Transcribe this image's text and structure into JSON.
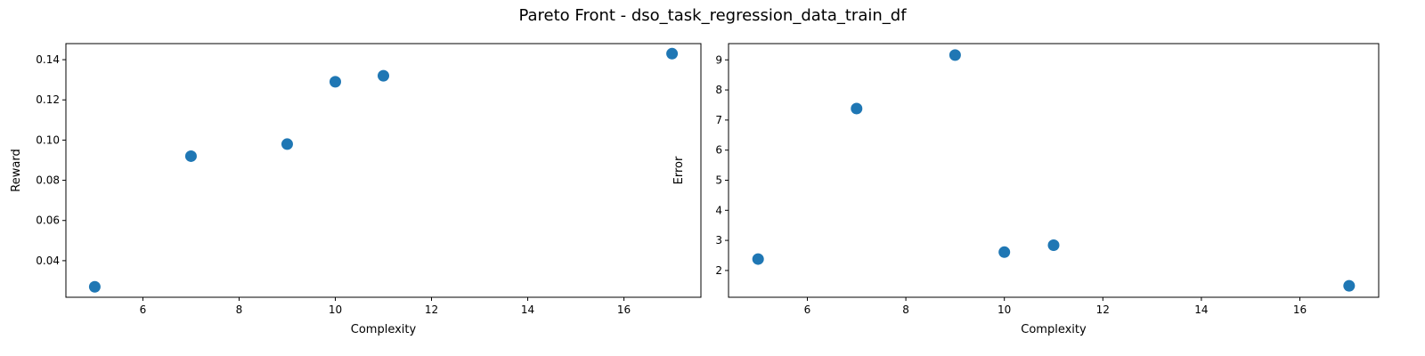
{
  "figure": {
    "title": "Pareto Front - dso_task_regression_data_train_df"
  },
  "chart_data": [
    {
      "type": "scatter",
      "title": "",
      "xlabel": "Complexity",
      "ylabel": "Reward",
      "xlim": [
        4.4,
        17.6
      ],
      "ylim": [
        0.0218,
        0.148
      ],
      "xticks": [
        6,
        8,
        10,
        12,
        14,
        16
      ],
      "yticks": [
        0.04,
        0.06,
        0.08,
        0.1,
        0.12,
        0.14
      ],
      "ytick_decimals": 2,
      "grid": false,
      "color": "#1f77b4",
      "series": [
        {
          "x": [
            5,
            7,
            9,
            10,
            11,
            17
          ],
          "y": [
            0.027,
            0.092,
            0.098,
            0.129,
            0.132,
            0.143
          ]
        }
      ]
    },
    {
      "type": "scatter",
      "title": "",
      "xlabel": "Complexity",
      "ylabel": "Error",
      "xlim": [
        4.4,
        17.6
      ],
      "ylim": [
        1.11,
        9.54
      ],
      "xticks": [
        6,
        8,
        10,
        12,
        14,
        16
      ],
      "yticks": [
        2,
        3,
        4,
        5,
        6,
        7,
        8,
        9
      ],
      "ytick_decimals": 0,
      "grid": false,
      "color": "#1f77b4",
      "series": [
        {
          "x": [
            5,
            7,
            9,
            10,
            11,
            17
          ],
          "y": [
            2.38,
            7.38,
            9.16,
            2.61,
            2.84,
            1.49
          ]
        }
      ]
    }
  ]
}
